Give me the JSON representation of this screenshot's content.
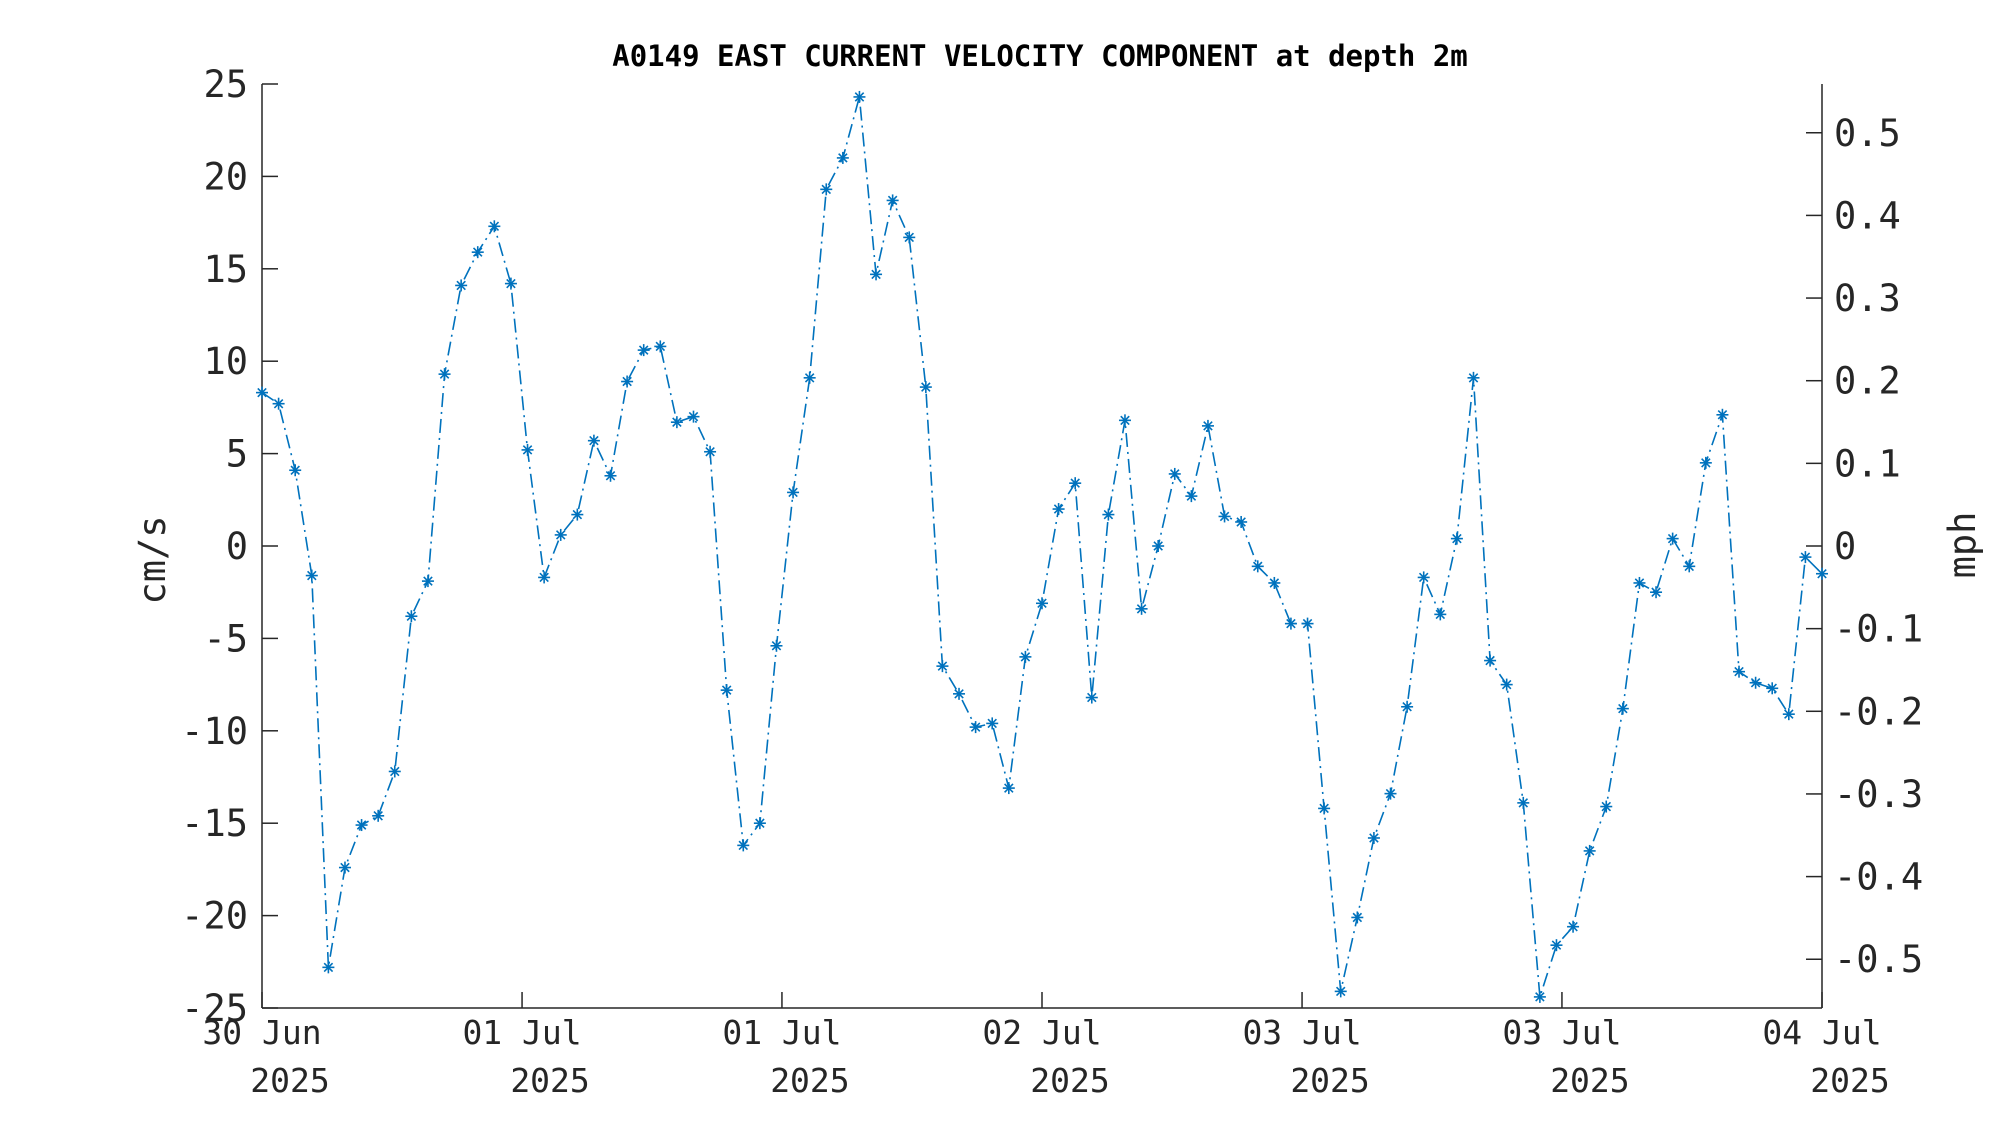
{
  "chart_data": {
    "type": "line",
    "title": "A0149 EAST CURRENT VELOCITY COMPONENT at depth 2m",
    "ylabel": "cm/s",
    "ylabel_right": "mph",
    "ylim": [
      -25,
      25
    ],
    "yticks": [
      -25,
      -20,
      -15,
      -10,
      -5,
      0,
      5,
      10,
      15,
      20,
      25
    ],
    "ylim_right": [
      -0.559,
      0.559
    ],
    "yticks_right": [
      -0.5,
      -0.4,
      -0.3,
      -0.2,
      -0.1,
      0,
      0.1,
      0.2,
      0.3,
      0.4,
      0.5
    ],
    "yticks_right_labels": [
      "-0.5",
      "-0.4",
      "-0.3",
      "-0.2",
      "-0.1",
      "0",
      "0.1",
      "0.2",
      "0.3",
      "0.4",
      "0.5"
    ],
    "xlim_points": [
      0,
      94
    ],
    "xticks": [
      {
        "point": 0,
        "line1": "30 Jun",
        "line2": "2025"
      },
      {
        "point": 15.67,
        "line1": "01 Jul",
        "line2": "2025"
      },
      {
        "point": 31.33,
        "line1": "01 Jul",
        "line2": "2025"
      },
      {
        "point": 47,
        "line1": "02 Jul",
        "line2": "2025"
      },
      {
        "point": 62.67,
        "line1": "03 Jul",
        "line2": "2025"
      },
      {
        "point": 78.33,
        "line1": "03 Jul",
        "line2": "2025"
      },
      {
        "point": 94,
        "line1": "04 Jul",
        "line2": "2025"
      }
    ],
    "series": [
      {
        "color": "#0072BD",
        "line_style": "dash-dot",
        "marker": "asterisk",
        "values": [
          8.3,
          7.7,
          4.1,
          -1.6,
          -22.8,
          -17.4,
          -15.1,
          -14.6,
          -12.2,
          -3.8,
          -1.9,
          9.3,
          14.1,
          15.9,
          17.3,
          14.2,
          5.2,
          -1.7,
          0.6,
          1.7,
          5.7,
          3.8,
          8.9,
          10.6,
          10.8,
          6.7,
          7.0,
          5.1,
          -7.8,
          -16.2,
          -15.0,
          -5.4,
          2.9,
          9.1,
          19.3,
          21.0,
          24.3,
          14.7,
          18.7,
          16.7,
          8.6,
          -6.5,
          -8.0,
          -9.8,
          -9.6,
          -13.1,
          -6.0,
          -3.1,
          2.0,
          3.4,
          -8.2,
          1.7,
          6.8,
          -3.4,
          0.0,
          3.9,
          2.7,
          6.5,
          1.6,
          1.3,
          -1.1,
          -2.0,
          -4.2,
          -4.2,
          -14.2,
          -24.1,
          -20.1,
          -15.8,
          -13.4,
          -8.7,
          -1.7,
          -3.7,
          0.4,
          9.1,
          -6.2,
          -7.5,
          -13.9,
          -24.4,
          -21.6,
          -20.6,
          -16.5,
          -14.1,
          -8.8,
          -2.0,
          -2.5,
          0.4,
          -1.1,
          4.5,
          7.1,
          -6.8,
          -7.4,
          -7.7,
          -9.1,
          -0.6,
          -1.5
        ]
      }
    ]
  }
}
